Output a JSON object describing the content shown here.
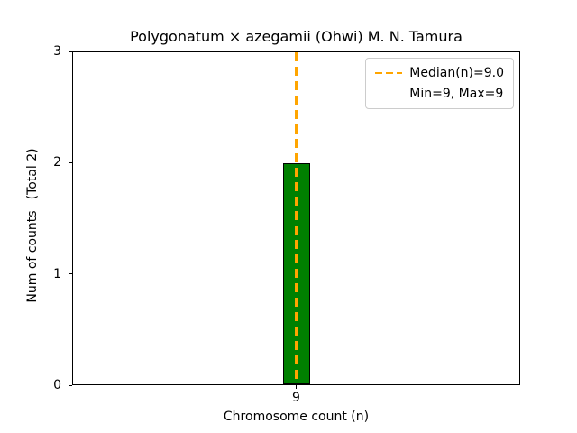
{
  "chart_data": {
    "type": "bar",
    "title": "Polygonatum × azegamii (Ohwi) M. N. Tamura",
    "xlabel": "Chromosome count (n)",
    "ylabel": "Num of counts",
    "ylabel_note": "(Total 2)",
    "categories": [
      "9"
    ],
    "values": [
      2
    ],
    "ylim": [
      0,
      3
    ],
    "yticks": [
      "0",
      "1",
      "2",
      "3"
    ],
    "grid": false,
    "bar_style": {
      "fill_color": "#008000",
      "edge_color": "#000000"
    },
    "median_line": {
      "x": 9.0,
      "style": "dashed",
      "color": "#ffa500"
    },
    "stats": {
      "median": 9.0,
      "min": 9,
      "max": 9,
      "total": 2
    },
    "legend": {
      "position": "upper right",
      "entries": [
        {
          "label": "Median(n)=9.0",
          "marker": "dashed-line",
          "color": "#ffa500"
        },
        {
          "label": "Min=9, Max=9",
          "marker": "none"
        }
      ]
    }
  }
}
